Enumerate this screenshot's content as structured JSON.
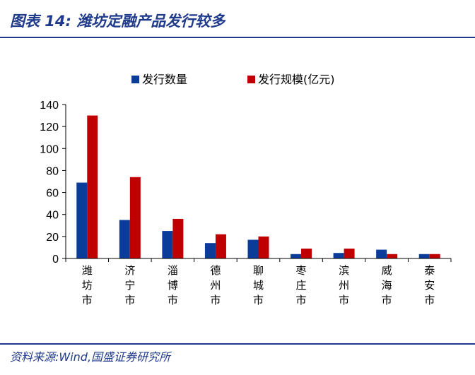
{
  "figure": {
    "title": "图表 14:  潍坊定融产品发行较多",
    "source": "资料来源:Wind,国盛证券研究所"
  },
  "chart_data": {
    "type": "bar",
    "categories": [
      "潍坊市",
      "济宁市",
      "淄博市",
      "德州市",
      "聊城市",
      "枣庄市",
      "滨州市",
      "威海市",
      "泰安市"
    ],
    "series": [
      {
        "name": "发行数量",
        "color": "#0a3d9a",
        "values": [
          69,
          35,
          25,
          14,
          17,
          4,
          5,
          8,
          4
        ]
      },
      {
        "name": "发行规模(亿元)",
        "color": "#c00000",
        "values": [
          130,
          74,
          36,
          22,
          20,
          9,
          9,
          4,
          4
        ]
      }
    ],
    "ylim": [
      0,
      140
    ],
    "yticks": [
      0,
      20,
      40,
      60,
      80,
      100,
      120,
      140
    ],
    "legend_position": "top",
    "grid": false
  }
}
